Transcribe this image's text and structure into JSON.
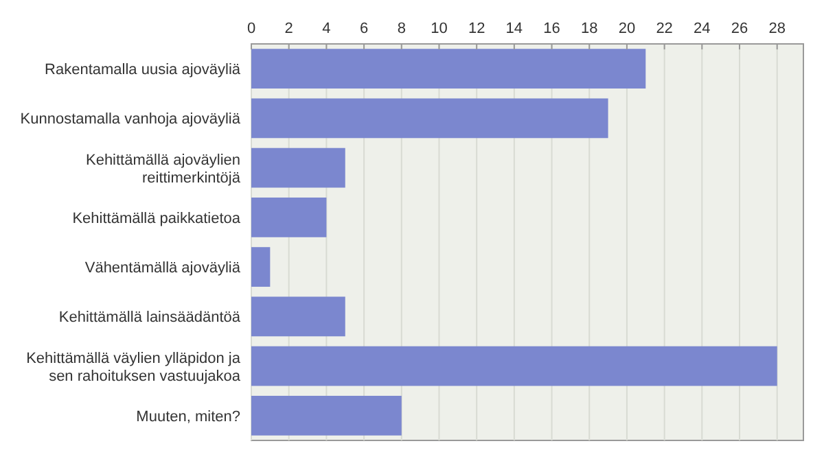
{
  "chart_data": {
    "type": "bar",
    "orientation": "horizontal",
    "categories": [
      "Rakentamalla uusia ajoväyliä",
      "Kunnostamalla vanhoja ajoväyliä",
      "Kehittämällä ajoväylien\nreittimerkintöjä",
      "Kehittämällä paikkatietoa",
      "Vähentämällä ajoväyliä",
      "Kehittämällä lainsäädäntöä",
      "Kehittämällä väylien ylläpidon ja\nsen rahoituksen vastuujakoa",
      "Muuten, miten?"
    ],
    "values": [
      21,
      19,
      5,
      4,
      1,
      5,
      28,
      8
    ],
    "color": "#7b87cf",
    "xlim": [
      0,
      29.4
    ],
    "xticks": [
      0,
      2,
      4,
      6,
      8,
      10,
      12,
      14,
      16,
      18,
      20,
      22,
      24,
      26,
      28
    ],
    "grid": "x"
  }
}
